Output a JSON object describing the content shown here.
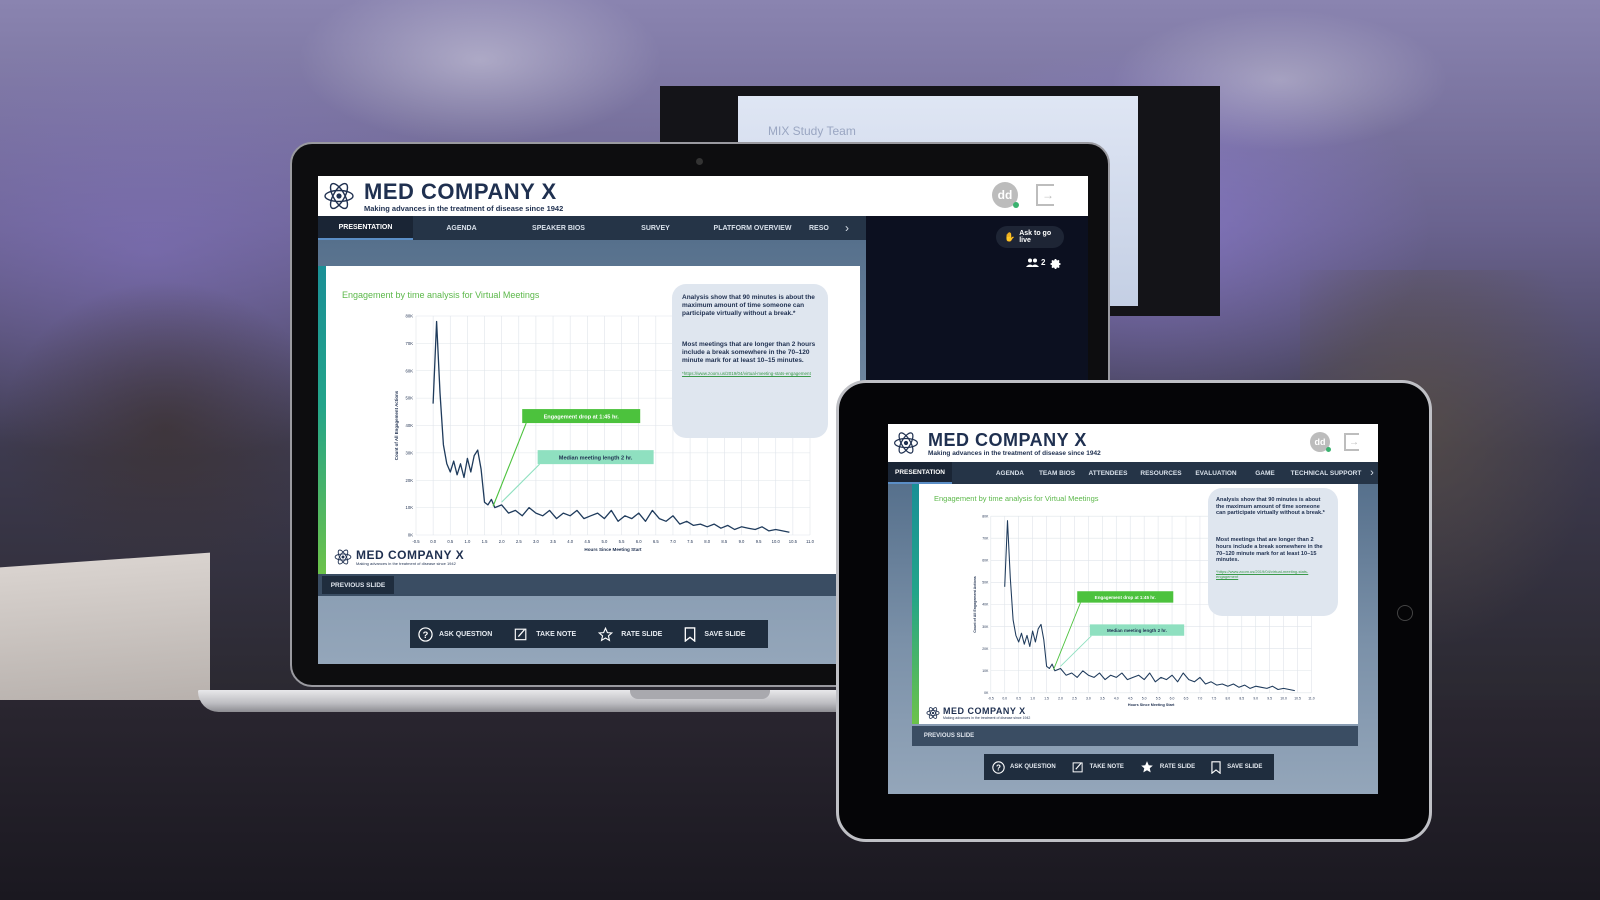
{
  "scene": {
    "projector_text": "MIX Study Team"
  },
  "brand": {
    "name": "MED COMPANY X",
    "tagline": "Making advances in the treatment of disease since 1942"
  },
  "user": {
    "initials": "dd"
  },
  "laptop": {
    "nav_tabs": [
      "PRESENTATION",
      "AGENDA",
      "SPEAKER BIOS",
      "SURVEY",
      "PLATFORM OVERVIEW",
      "RESO"
    ],
    "go_live_label": "Ask to go live",
    "attendee_count": "2"
  },
  "tablet": {
    "nav_tabs": [
      "PRESENTATION",
      "AGENDA",
      "TEAM BIOS",
      "ATTENDEES",
      "RESOURCES",
      "EVALUATION",
      "GAME",
      "TECHNICAL SUPPORT"
    ]
  },
  "slide": {
    "title": "Engagement by time analysis for Virtual Meetings",
    "callout_p1": "Analysis show that 90 minutes is about the maximum amount of time someone can participate virtually without a break.*",
    "callout_p2": "Most meetings that are longer than 2 hours include a break somewhere in the 70–120 minute mark for at least 10–15 minutes.",
    "callout_link": "*https://www.zoom.us/2019/04/virtual-meeting-stats-engagement",
    "annotation_drop": "Engagement drop at 1:45 hr.",
    "annotation_median": "Median meeting length 2 hr."
  },
  "controls": {
    "previous": "PREVIOUS SLIDE",
    "ask": "ASK QUESTION",
    "note": "TAKE NOTE",
    "rate": "RATE SLIDE",
    "save": "SAVE SLIDE"
  },
  "colors": {
    "nav": "#253447",
    "accent_green": "#5cb84a",
    "line": "#1f3b5c",
    "annotation_green": "#4cc23d",
    "annotation_mint": "#8fe0c0"
  },
  "icons": [
    "atom-logo-icon",
    "logout-icon",
    "hand-icon",
    "people-icon",
    "gear-icon",
    "question-icon",
    "note-icon",
    "star-icon",
    "bookmark-icon",
    "chevron-right-icon"
  ],
  "chart_data": {
    "type": "line",
    "title": "",
    "xlabel": "Hours Since Meeting Start",
    "ylabel": "Count of All Engagement Actions",
    "xlim": [
      -0.5,
      11.0
    ],
    "ylim": [
      0,
      80000
    ],
    "x_ticks": [
      "-0.5",
      "0.0",
      "0.5",
      "1.0",
      "1.5",
      "2.0",
      "2.5",
      "3.0",
      "3.5",
      "4.0",
      "4.5",
      "5.0",
      "5.5",
      "6.0",
      "6.5",
      "7.0",
      "7.5",
      "8.0",
      "8.5",
      "9.0",
      "9.5",
      "10.0",
      "10.5",
      "11.0"
    ],
    "y_ticks": [
      "0K",
      "10K",
      "20K",
      "30K",
      "40K",
      "50K",
      "60K",
      "70K",
      "80K"
    ],
    "grid": true,
    "x": [
      0.0,
      0.1,
      0.2,
      0.3,
      0.4,
      0.5,
      0.6,
      0.7,
      0.8,
      0.9,
      1.0,
      1.1,
      1.2,
      1.3,
      1.4,
      1.5,
      1.6,
      1.7,
      1.8,
      2.0,
      2.2,
      2.4,
      2.6,
      2.8,
      3.0,
      3.2,
      3.4,
      3.6,
      3.8,
      4.0,
      4.2,
      4.4,
      4.6,
      4.8,
      5.0,
      5.2,
      5.4,
      5.6,
      5.8,
      6.0,
      6.2,
      6.4,
      6.6,
      6.8,
      7.0,
      7.2,
      7.4,
      7.6,
      7.8,
      8.0,
      8.2,
      8.4,
      8.6,
      8.8,
      9.0,
      9.2,
      9.4,
      9.6,
      9.8,
      10.0,
      10.2,
      10.4
    ],
    "y": [
      48000,
      78000,
      52000,
      33000,
      26000,
      23000,
      27000,
      22000,
      26000,
      21000,
      28000,
      23000,
      29000,
      31000,
      24000,
      12000,
      11000,
      13000,
      10000,
      11000,
      8000,
      9000,
      7000,
      10000,
      8000,
      7000,
      9000,
      6000,
      8000,
      7000,
      9000,
      6000,
      7000,
      8000,
      6000,
      9000,
      5000,
      7000,
      6000,
      8000,
      5000,
      9000,
      6000,
      5000,
      7000,
      4000,
      5000,
      3500,
      4000,
      3000,
      4000,
      2500,
      3500,
      2000,
      3000,
      2500,
      2000,
      3000,
      1500,
      2000,
      1500,
      1000
    ]
  }
}
